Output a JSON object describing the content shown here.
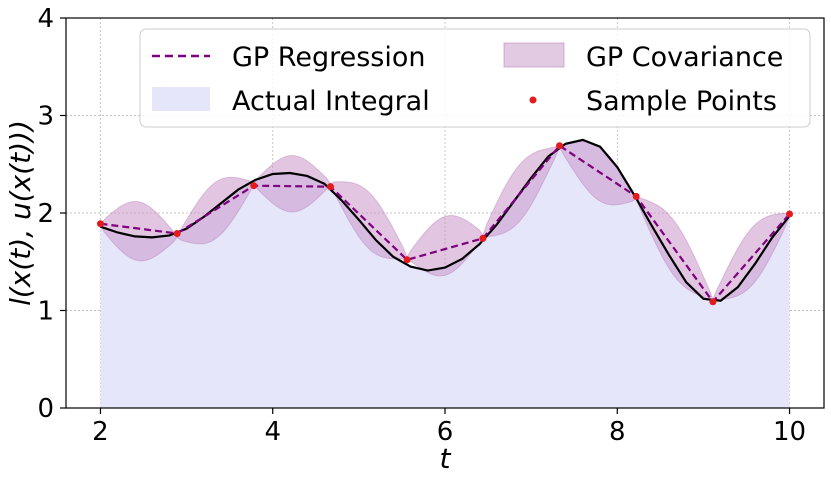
{
  "chart_data": {
    "type": "line",
    "xlabel": "t",
    "ylabel": "l(x(t), u(x(t)))",
    "xlim": [
      1.6,
      10.4
    ],
    "ylim": [
      0,
      4
    ],
    "xticks": [
      2,
      4,
      6,
      8,
      10
    ],
    "yticks": [
      0,
      1,
      2,
      3,
      4
    ],
    "xtick_labels": [
      "2",
      "4",
      "6",
      "8",
      "10"
    ],
    "ytick_labels": [
      "0",
      "1",
      "2",
      "3",
      "4"
    ],
    "grid": true,
    "legend_position": "top-right",
    "legend": {
      "gp_regression": "GP Regression",
      "gp_covariance": "GP Covariance",
      "actual_integral": "Actual Integral",
      "sample_points": "Sample Points"
    },
    "colors": {
      "gp_regression": "#800080",
      "gp_covariance": "#c896c8",
      "actual_integral": "#e6e6fa",
      "true_curve": "#000000",
      "sample_points": "#e41a1c"
    },
    "true_curve": {
      "x": [
        2.0,
        2.2,
        2.4,
        2.6,
        2.8,
        3.0,
        3.2,
        3.4,
        3.6,
        3.8,
        4.0,
        4.2,
        4.4,
        4.6,
        4.8,
        5.0,
        5.2,
        5.4,
        5.6,
        5.8,
        6.0,
        6.2,
        6.4,
        6.6,
        6.8,
        7.0,
        7.2,
        7.4,
        7.6,
        7.8,
        8.0,
        8.2,
        8.4,
        8.6,
        8.8,
        9.0,
        9.2,
        9.4,
        9.6,
        9.8,
        10.0
      ],
      "y": [
        1.86,
        1.8,
        1.76,
        1.75,
        1.77,
        1.84,
        1.96,
        2.1,
        2.24,
        2.34,
        2.4,
        2.41,
        2.38,
        2.3,
        2.13,
        1.93,
        1.72,
        1.55,
        1.45,
        1.41,
        1.44,
        1.53,
        1.68,
        1.88,
        2.12,
        2.36,
        2.58,
        2.71,
        2.75,
        2.68,
        2.47,
        2.18,
        1.87,
        1.57,
        1.29,
        1.12,
        1.1,
        1.24,
        1.48,
        1.75,
        1.97
      ]
    },
    "series": [
      {
        "name": "GP Regression",
        "x": [
          2.0,
          2.89,
          3.78,
          4.67,
          5.56,
          6.44,
          7.33,
          8.22,
          9.11,
          10.0
        ],
        "y": [
          1.89,
          1.79,
          2.28,
          2.27,
          1.52,
          1.74,
          2.69,
          2.17,
          1.09,
          1.99
        ]
      },
      {
        "name": "Sample Points",
        "x": [
          2.0,
          2.89,
          3.78,
          4.67,
          5.56,
          6.44,
          7.33,
          8.22,
          9.11,
          10.0
        ],
        "y": [
          1.89,
          1.79,
          2.28,
          2.27,
          1.52,
          1.74,
          2.69,
          2.17,
          1.09,
          1.99
        ]
      }
    ],
    "covariance_bands": [
      {
        "x": [
          2.0,
          2.89
        ],
        "upper": [
          2.05,
          1.9
        ],
        "lower": [
          1.7,
          1.6
        ]
      },
      {
        "x": [
          2.89,
          3.78
        ],
        "upper": [
          1.9,
          2.45
        ],
        "lower": [
          1.6,
          2.15
        ]
      },
      {
        "x": [
          3.78,
          4.67
        ],
        "upper": [
          2.45,
          2.45
        ],
        "lower": [
          2.15,
          2.15
        ]
      },
      {
        "x": [
          4.67,
          5.56
        ],
        "upper": [
          2.45,
          1.7
        ],
        "lower": [
          2.15,
          1.4
        ]
      },
      {
        "x": [
          5.56,
          6.44
        ],
        "upper": [
          1.7,
          1.95
        ],
        "lower": [
          1.4,
          1.6
        ]
      },
      {
        "x": [
          6.44,
          7.33
        ],
        "upper": [
          1.95,
          2.8
        ],
        "lower": [
          1.6,
          2.55
        ]
      },
      {
        "x": [
          7.33,
          8.22
        ],
        "upper": [
          2.8,
          2.3
        ],
        "lower": [
          2.55,
          2.0
        ]
      },
      {
        "x": [
          8.22,
          9.11
        ],
        "upper": [
          2.3,
          1.25
        ],
        "lower": [
          2.0,
          0.98
        ]
      },
      {
        "x": [
          9.11,
          10.0
        ],
        "upper": [
          1.25,
          2.15
        ],
        "lower": [
          0.98,
          1.8
        ]
      }
    ]
  }
}
